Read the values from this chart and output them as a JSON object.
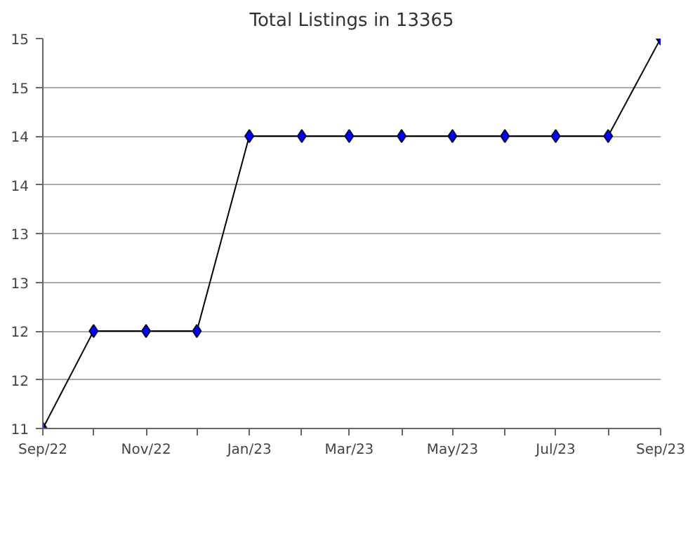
{
  "chart_data": {
    "type": "line",
    "title": "Total Listings in 13365",
    "x": [
      "2022-09",
      "2022-10",
      "2022-11",
      "2022-12",
      "2023-01",
      "2023-02",
      "2023-03",
      "2023-04",
      "2023-05",
      "2023-06",
      "2023-07",
      "2023-08",
      "2023-09"
    ],
    "series": [
      {
        "color": "#000000",
        "values": [
          11,
          12,
          12,
          12,
          14,
          14,
          14,
          14,
          14,
          14,
          14,
          14,
          15
        ]
      }
    ],
    "marker": "diamond",
    "line_style": "solid",
    "grid": "y",
    "xlim": [
      "2022-09",
      "2023-09"
    ],
    "xticks": [
      {
        "value": "2022-09",
        "label": "Sep/22"
      },
      {
        "value": "2022-10",
        "label": null
      },
      {
        "value": "2022-11",
        "label": "Nov/22"
      },
      {
        "value": "2022-12",
        "label": null
      },
      {
        "value": "2023-01",
        "label": "Jan/23"
      },
      {
        "value": "2023-02",
        "label": null
      },
      {
        "value": "2023-03",
        "label": "Mar/23"
      },
      {
        "value": "2023-04",
        "label": null
      },
      {
        "value": "2023-05",
        "label": "May/23"
      },
      {
        "value": "2023-06",
        "label": null
      },
      {
        "value": "2023-07",
        "label": "Jul/23"
      },
      {
        "value": "2023-08",
        "label": null
      },
      {
        "value": "2023-09",
        "label": "Sep/23"
      }
    ],
    "ylim": [
      11,
      15
    ],
    "yticks": [
      11,
      {
        "value": 11.5,
        "label": "12"
      },
      12,
      {
        "value": 12.5,
        "label": "13"
      },
      13,
      {
        "value": 13.5,
        "label": "14"
      },
      14,
      {
        "value": 14.5,
        "label": "15"
      },
      15
    ]
  }
}
